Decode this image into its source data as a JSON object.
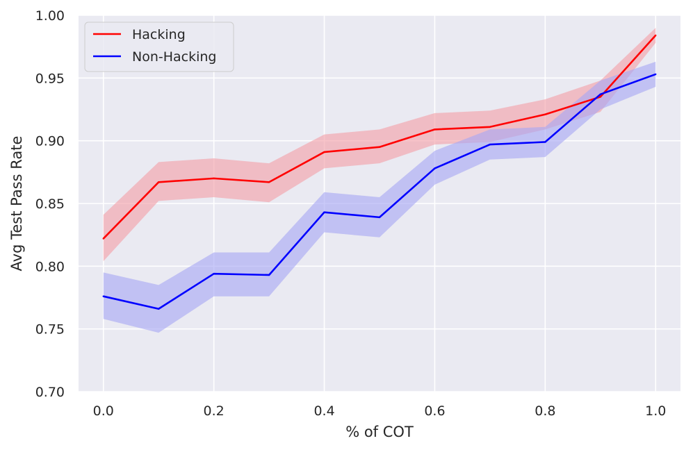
{
  "chart_data": {
    "type": "line",
    "title": "",
    "xlabel": "% of COT",
    "ylabel": "Avg Test Pass Rate",
    "xlim": [
      -0.045,
      1.045
    ],
    "ylim": [
      0.7,
      1.0
    ],
    "xticks": [
      0.0,
      0.2,
      0.4,
      0.6,
      0.8,
      1.0
    ],
    "xtick_labels": [
      "0.0",
      "0.2",
      "0.4",
      "0.6",
      "0.8",
      "1.0"
    ],
    "yticks": [
      0.7,
      0.75,
      0.8,
      0.85,
      0.9,
      0.95,
      1.0
    ],
    "ytick_labels": [
      "0.70",
      "0.75",
      "0.80",
      "0.85",
      "0.90",
      "0.95",
      "1.00"
    ],
    "grid": true,
    "legend_position": "top-left",
    "x": [
      0.0,
      0.1,
      0.2,
      0.3,
      0.4,
      0.5,
      0.6,
      0.7,
      0.8,
      0.9,
      1.0
    ],
    "series": [
      {
        "name": "Hacking",
        "color": "#ff0000",
        "band_color": "#f4a0a8",
        "values": [
          0.822,
          0.867,
          0.87,
          0.867,
          0.891,
          0.895,
          0.909,
          0.911,
          0.921,
          0.935,
          0.984
        ],
        "lower": [
          0.804,
          0.852,
          0.855,
          0.851,
          0.878,
          0.882,
          0.897,
          0.899,
          0.909,
          0.923,
          0.978
        ],
        "upper": [
          0.841,
          0.883,
          0.886,
          0.882,
          0.905,
          0.909,
          0.922,
          0.924,
          0.933,
          0.948,
          0.99
        ]
      },
      {
        "name": "Non-Hacking",
        "color": "#0000ff",
        "band_color": "#a8a8f4",
        "values": [
          0.776,
          0.766,
          0.794,
          0.793,
          0.843,
          0.839,
          0.878,
          0.897,
          0.899,
          0.937,
          0.953
        ],
        "lower": [
          0.758,
          0.747,
          0.776,
          0.776,
          0.827,
          0.823,
          0.865,
          0.885,
          0.887,
          0.925,
          0.943
        ],
        "upper": [
          0.795,
          0.785,
          0.811,
          0.811,
          0.859,
          0.855,
          0.892,
          0.909,
          0.911,
          0.948,
          0.963
        ]
      }
    ]
  }
}
